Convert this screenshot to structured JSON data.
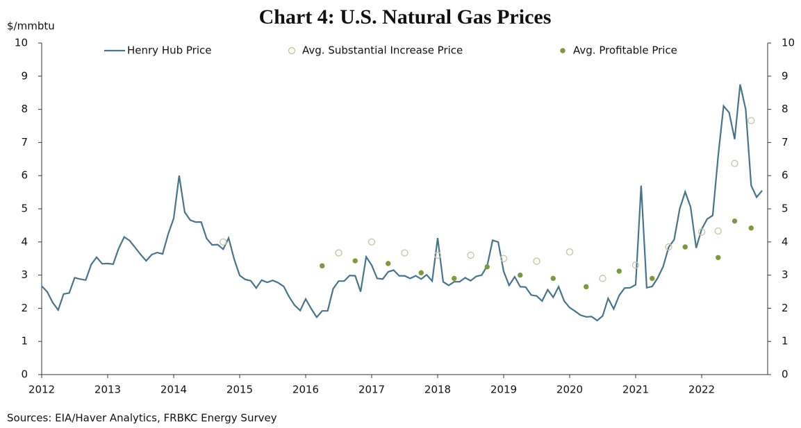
{
  "chart_data": {
    "type": "line",
    "title": "Chart 4: U.S. Natural Gas Prices",
    "y_label": "$/mmbtu",
    "source": "Sources: EIA/Haver Analytics, FRBKC Energy Survey",
    "xlim": [
      2012,
      2023
    ],
    "xticks": [
      2012,
      2013,
      2014,
      2015,
      2016,
      2017,
      2018,
      2019,
      2020,
      2021,
      2022
    ],
    "ylim": [
      0,
      10
    ],
    "yticks": [
      0,
      1,
      2,
      3,
      4,
      5,
      6,
      7,
      8,
      9,
      10
    ],
    "y2lim": [
      0,
      10
    ],
    "y2ticks": [
      0,
      1,
      2,
      3,
      4,
      5,
      6,
      7,
      8,
      9,
      10
    ],
    "legend": "top",
    "series": [
      {
        "name": "Henry Hub Price",
        "type": "line",
        "color": "#45748f",
        "x": [
          2012,
          2012.083,
          2012.167,
          2012.25,
          2012.333,
          2012.417,
          2012.5,
          2012.583,
          2012.667,
          2012.75,
          2012.833,
          2012.917,
          2013,
          2013.083,
          2013.167,
          2013.25,
          2013.333,
          2013.417,
          2013.5,
          2013.583,
          2013.667,
          2013.75,
          2013.833,
          2013.917,
          2014,
          2014.083,
          2014.167,
          2014.25,
          2014.333,
          2014.417,
          2014.5,
          2014.583,
          2014.667,
          2014.75,
          2014.833,
          2014.917,
          2015,
          2015.083,
          2015.167,
          2015.25,
          2015.333,
          2015.417,
          2015.5,
          2015.583,
          2015.667,
          2015.75,
          2015.833,
          2015.917,
          2016,
          2016.083,
          2016.167,
          2016.25,
          2016.333,
          2016.417,
          2016.5,
          2016.583,
          2016.667,
          2016.75,
          2016.833,
          2016.917,
          2017,
          2017.083,
          2017.167,
          2017.25,
          2017.333,
          2017.417,
          2017.5,
          2017.583,
          2017.667,
          2017.75,
          2017.833,
          2017.917,
          2018,
          2018.083,
          2018.167,
          2018.25,
          2018.333,
          2018.417,
          2018.5,
          2018.583,
          2018.667,
          2018.75,
          2018.833,
          2018.917,
          2019,
          2019.083,
          2019.167,
          2019.25,
          2019.333,
          2019.417,
          2019.5,
          2019.583,
          2019.667,
          2019.75,
          2019.833,
          2019.917,
          2020,
          2020.083,
          2020.167,
          2020.25,
          2020.333,
          2020.417,
          2020.5,
          2020.583,
          2020.667,
          2020.75,
          2020.833,
          2020.917,
          2021,
          2021.083,
          2021.167,
          2021.25,
          2021.333,
          2021.417,
          2021.5,
          2021.583,
          2021.667,
          2021.75,
          2021.833,
          2021.917,
          2022,
          2022.083,
          2022.167,
          2022.25,
          2022.333,
          2022.417,
          2022.5,
          2022.583,
          2022.667,
          2022.75,
          2022.833,
          2022.917
        ],
        "values": [
          2.67,
          2.5,
          2.17,
          1.95,
          2.43,
          2.46,
          2.92,
          2.88,
          2.85,
          3.32,
          3.54,
          3.34,
          3.35,
          3.33,
          3.81,
          4.15,
          4.04,
          3.83,
          3.62,
          3.43,
          3.62,
          3.68,
          3.64,
          4.24,
          4.71,
          6.0,
          4.9,
          4.66,
          4.6,
          4.6,
          4.1,
          3.91,
          3.92,
          3.78,
          4.12,
          3.48,
          2.99,
          2.87,
          2.83,
          2.61,
          2.85,
          2.78,
          2.84,
          2.77,
          2.66,
          2.34,
          2.09,
          1.93,
          2.28,
          1.99,
          1.73,
          1.92,
          1.92,
          2.59,
          2.82,
          2.82,
          2.99,
          2.98,
          2.5,
          3.55,
          3.3,
          2.9,
          2.88,
          3.1,
          3.15,
          2.98,
          2.98,
          2.9,
          2.98,
          2.88,
          3.01,
          2.82,
          4.12,
          2.8,
          2.69,
          2.8,
          2.8,
          2.92,
          2.83,
          2.96,
          3.0,
          3.28,
          4.05,
          4.0,
          3.11,
          2.69,
          2.95,
          2.65,
          2.64,
          2.4,
          2.37,
          2.22,
          2.56,
          2.33,
          2.65,
          2.22,
          2.02,
          1.91,
          1.79,
          1.74,
          1.75,
          1.63,
          1.77,
          2.3,
          1.98,
          2.39,
          2.61,
          2.62,
          2.71,
          5.7,
          2.62,
          2.66,
          2.91,
          3.26,
          3.84,
          4.07,
          5.0,
          5.51,
          5.05,
          3.82,
          4.38,
          4.69,
          4.8,
          6.6,
          8.1,
          7.9,
          7.1,
          8.75,
          8.0,
          5.7,
          5.35,
          5.55
        ]
      },
      {
        "name": "Avg. Substantial Increase Price",
        "type": "scatter",
        "marker": "open",
        "color": "#c9c7a3",
        "x": [
          2014.75,
          2016.5,
          2017,
          2017.5,
          2018,
          2018.5,
          2019,
          2019.5,
          2020,
          2020.5,
          2021,
          2021.5,
          2022,
          2022.25,
          2022.5,
          2022.75
        ],
        "values": [
          4.0,
          3.67,
          4.0,
          3.67,
          3.6,
          3.6,
          3.5,
          3.42,
          3.7,
          2.9,
          3.3,
          3.85,
          4.3,
          4.33,
          6.37,
          7.66
        ]
      },
      {
        "name": "Avg. Profitable Price",
        "type": "scatter",
        "marker": "filled",
        "color": "#7b9a3c",
        "x": [
          2016.25,
          2016.75,
          2017.25,
          2017.75,
          2018.25,
          2018.75,
          2019.25,
          2019.75,
          2020.25,
          2020.75,
          2021.25,
          2021.75,
          2022.25,
          2022.5,
          2022.75
        ],
        "values": [
          3.28,
          3.43,
          3.35,
          3.07,
          2.9,
          3.25,
          3.0,
          2.9,
          2.65,
          3.12,
          2.9,
          3.85,
          3.53,
          4.63,
          4.42
        ]
      }
    ]
  }
}
